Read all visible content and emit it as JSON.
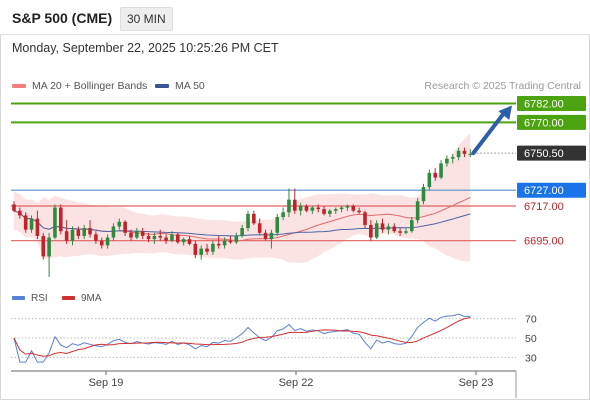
{
  "header": {
    "title": "S&P 500 (CME)",
    "timeframe": "30 MIN"
  },
  "datetime": "Monday, September 22, 2025 10:25:26 PM CET",
  "legend": {
    "ma20": "MA 20 + Bollinger Bands",
    "ma50": "MA 50",
    "credit": "Research © 2025 Trading Central"
  },
  "rsi_legend": {
    "rsi": "RSI",
    "ma": "9MA"
  },
  "colors": {
    "bull": "#2e8b3e",
    "bear": "#c0242b",
    "band_fill": "#fbd9d9",
    "ma20": "#e06a6a",
    "ma50": "#4c63a8",
    "green_level": "#4aa30f",
    "blue_level": "#5a8fc8",
    "red_level": "#e06060",
    "current_price_box": "#333333",
    "blue_box": "#1a73e8",
    "arrow": "#2d5ea8",
    "rsi_line": "#5a7fd6",
    "rsi_ma": "#d23030"
  },
  "chart_data": [
    {
      "type": "candlestick",
      "title": "S&P 500 (CME)",
      "timeframe": "30 MIN",
      "x_labels": [
        "Sep 19",
        "Sep 22",
        "Sep 23"
      ],
      "ylim": [
        6665,
        6788
      ],
      "levels": [
        {
          "value": 6782.0,
          "label": "6782.00",
          "kind": "resistance"
        },
        {
          "value": 6770.0,
          "label": "6770.00",
          "kind": "resistance"
        },
        {
          "value": 6727.0,
          "label": "6727.00",
          "kind": "pivot"
        },
        {
          "value": 6717.0,
          "label": "6717.00",
          "kind": "support"
        },
        {
          "value": 6695.0,
          "label": "6695.00",
          "kind": "support"
        }
      ],
      "current_price": {
        "value": 6750.5,
        "label": "6750.50"
      },
      "target_arrow": {
        "from": 6750.5,
        "to": 6782.0
      },
      "indicators": [
        "MA 20 + Bollinger Bands",
        "MA 50"
      ],
      "candles": [
        [
          6718,
          6720,
          6713,
          6714
        ],
        [
          6714,
          6716,
          6709,
          6711
        ],
        [
          6711,
          6713,
          6700,
          6702
        ],
        [
          6702,
          6711,
          6700,
          6709
        ],
        [
          6709,
          6714,
          6696,
          6698
        ],
        [
          6698,
          6700,
          6683,
          6685
        ],
        [
          6685,
          6700,
          6672,
          6697
        ],
        [
          6697,
          6718,
          6696,
          6716
        ],
        [
          6716,
          6718,
          6699,
          6701
        ],
        [
          6701,
          6708,
          6693,
          6695
        ],
        [
          6695,
          6704,
          6692,
          6702
        ],
        [
          6702,
          6704,
          6696,
          6698
        ],
        [
          6698,
          6705,
          6696,
          6703
        ],
        [
          6703,
          6708,
          6697,
          6699
        ],
        [
          6699,
          6701,
          6693,
          6695
        ],
        [
          6695,
          6697,
          6690,
          6692
        ],
        [
          6692,
          6699,
          6690,
          6697
        ],
        [
          6697,
          6706,
          6695,
          6704
        ],
        [
          6704,
          6709,
          6702,
          6707
        ],
        [
          6707,
          6708,
          6698,
          6700
        ],
        [
          6700,
          6702,
          6695,
          6697
        ],
        [
          6697,
          6703,
          6696,
          6701
        ],
        [
          6701,
          6703,
          6696,
          6698
        ],
        [
          6698,
          6700,
          6694,
          6696
        ],
        [
          6696,
          6700,
          6693,
          6698
        ],
        [
          6698,
          6702,
          6695,
          6697
        ],
        [
          6697,
          6699,
          6693,
          6695
        ],
        [
          6695,
          6701,
          6694,
          6699
        ],
        [
          6699,
          6700,
          6693,
          6694
        ],
        [
          6694,
          6697,
          6692,
          6696
        ],
        [
          6696,
          6698,
          6692,
          6693
        ],
        [
          6693,
          6695,
          6684,
          6686
        ],
        [
          6686,
          6692,
          6683,
          6690
        ],
        [
          6690,
          6693,
          6686,
          6688
        ],
        [
          6688,
          6695,
          6686,
          6693
        ],
        [
          6693,
          6698,
          6690,
          6692
        ],
        [
          6692,
          6697,
          6690,
          6695
        ],
        [
          6695,
          6698,
          6693,
          6694
        ],
        [
          6694,
          6700,
          6693,
          6698
        ],
        [
          6698,
          6705,
          6697,
          6703
        ],
        [
          6703,
          6714,
          6701,
          6712
        ],
        [
          6712,
          6714,
          6705,
          6706
        ],
        [
          6706,
          6709,
          6699,
          6700
        ],
        [
          6700,
          6702,
          6695,
          6696
        ],
        [
          6696,
          6702,
          6690,
          6700
        ],
        [
          6700,
          6712,
          6698,
          6710
        ],
        [
          6710,
          6716,
          6708,
          6713
        ],
        [
          6713,
          6728,
          6710,
          6721
        ],
        [
          6721,
          6728,
          6712,
          6714
        ],
        [
          6714,
          6719,
          6711,
          6717
        ],
        [
          6717,
          6718,
          6713,
          6714
        ],
        [
          6714,
          6717,
          6712,
          6716
        ],
        [
          6716,
          6718,
          6713,
          6715
        ],
        [
          6715,
          6717,
          6711,
          6712
        ],
        [
          6712,
          6715,
          6710,
          6714
        ],
        [
          6714,
          6716,
          6712,
          6715
        ],
        [
          6715,
          6717,
          6713,
          6716
        ],
        [
          6716,
          6718,
          6714,
          6717
        ],
        [
          6717,
          6718,
          6713,
          6714
        ],
        [
          6714,
          6716,
          6712,
          6713
        ],
        [
          6713,
          6714,
          6703,
          6705
        ],
        [
          6705,
          6708,
          6695,
          6697
        ],
        [
          6697,
          6708,
          6696,
          6706
        ],
        [
          6706,
          6709,
          6700,
          6702
        ],
        [
          6702,
          6706,
          6699,
          6704
        ],
        [
          6704,
          6706,
          6700,
          6701
        ],
        [
          6701,
          6703,
          6698,
          6700
        ],
        [
          6700,
          6703,
          6699,
          6701
        ],
        [
          6701,
          6710,
          6700,
          6708
        ],
        [
          6708,
          6722,
          6706,
          6720
        ],
        [
          6720,
          6731,
          6718,
          6729
        ],
        [
          6729,
          6740,
          6727,
          6738
        ],
        [
          6738,
          6741,
          6733,
          6735
        ],
        [
          6735,
          6746,
          6734,
          6744
        ],
        [
          6744,
          6749,
          6742,
          6747
        ],
        [
          6747,
          6750,
          6744,
          6748
        ],
        [
          6748,
          6754,
          6746,
          6752
        ],
        [
          6752,
          6754,
          6748,
          6750
        ],
        [
          6750,
          6753,
          6748,
          6750
        ]
      ],
      "rsi": {
        "levels": [
          70,
          50,
          30
        ],
        "ylim": [
          20,
          80
        ]
      }
    }
  ]
}
